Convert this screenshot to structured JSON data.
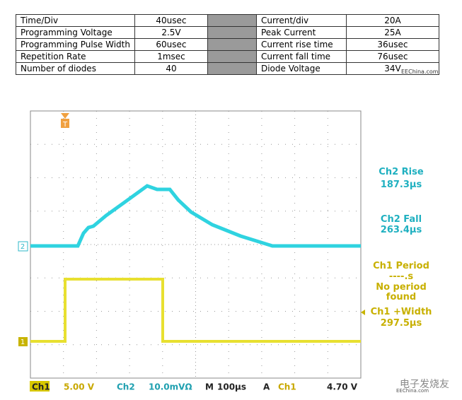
{
  "table": {
    "rows": [
      [
        "Time/Div",
        "40usec",
        "Current/div",
        "20A"
      ],
      [
        "Programming Voltage",
        "2.5V",
        "Peak Current",
        "25A"
      ],
      [
        "Programming Pulse Width",
        "60usec",
        "Current rise time",
        "36usec"
      ],
      [
        "Repetition Rate",
        "1msec",
        "Current fall time",
        "76usec"
      ],
      [
        "Number of diodes",
        "40",
        "Diode Voltage",
        "34V"
      ]
    ]
  },
  "watermark_top": "EEChina.com",
  "scope": {
    "markers": {
      "trigger": "T",
      "ch2": "2",
      "ch1": "1"
    },
    "readouts": [
      {
        "text": "Ch2 Rise",
        "color": "#1fb0c0"
      },
      {
        "text": "187.3μs",
        "color": "#1fb0c0"
      },
      {
        "text": "Ch2 Fall",
        "color": "#1fb0c0"
      },
      {
        "text": "263.4μs",
        "color": "#1fb0c0"
      },
      {
        "text": "Ch1 Period",
        "color": "#c8b000"
      },
      {
        "text": "----.s",
        "color": "#c8b000"
      },
      {
        "text": "No period",
        "color": "#c8b000"
      },
      {
        "text": "found",
        "color": "#c8b000"
      },
      {
        "text": "Ch1 +Width",
        "color": "#c8b000"
      },
      {
        "text": "297.5μs",
        "color": "#c8b000"
      }
    ],
    "status_bar": {
      "items": [
        "Ch1",
        "5.00 V",
        "Ch2",
        "10.0mVΩ",
        "M",
        "100μs",
        "A",
        "Ch1",
        "4.70 V"
      ],
      "logo": "电子发烧友",
      "watermark": "EEChina.com"
    }
  }
}
